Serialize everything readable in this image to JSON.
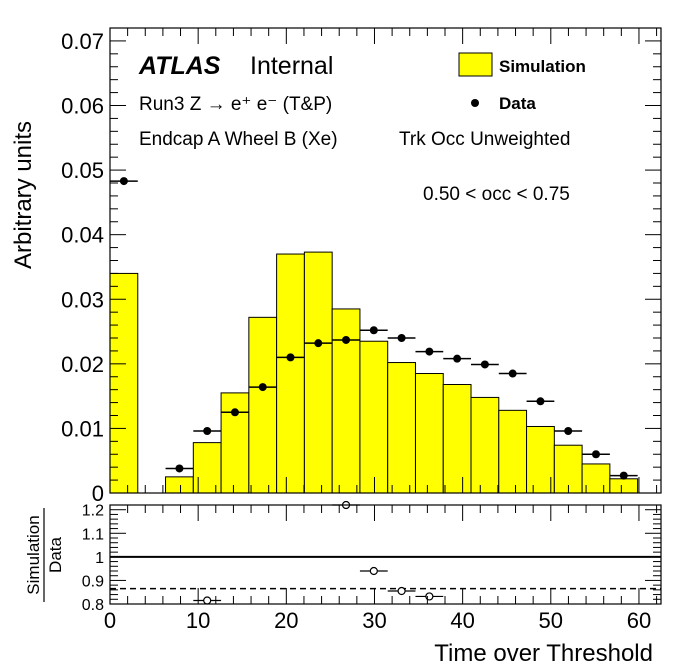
{
  "chart_data": {
    "type": "bar",
    "top_panel": {
      "ylabel": "Arbitrary units",
      "ylim": [
        0,
        0.072
      ],
      "yticks": [
        "0",
        "0.01",
        "0.02",
        "0.03",
        "0.04",
        "0.05",
        "0.06",
        "0.07"
      ],
      "bin_edges": [
        0,
        3.15,
        6.3,
        9.45,
        12.6,
        15.75,
        18.9,
        22.05,
        25.2,
        28.35,
        31.5,
        34.65,
        37.8,
        40.95,
        44.1,
        47.25,
        50.4,
        53.55,
        56.7,
        59.85
      ],
      "series": [
        {
          "name": "Simulation",
          "style": "filled-histogram",
          "color": "#ffff00",
          "values": [
            0.034,
            0.0,
            0.0025,
            0.0078,
            0.0155,
            0.0272,
            0.037,
            0.0373,
            0.0285,
            0.0235,
            0.0202,
            0.0185,
            0.0168,
            0.0148,
            0.0128,
            0.0103,
            0.0074,
            0.0045,
            0.0022
          ]
        },
        {
          "name": "Data",
          "style": "points",
          "color": "#000000",
          "x": [
            1.575,
            7.875,
            11.025,
            14.175,
            17.325,
            20.475,
            23.625,
            26.775,
            29.925,
            33.075,
            36.225,
            39.375,
            42.525,
            45.675,
            48.825,
            51.975,
            55.125,
            58.275
          ],
          "values": [
            0.0483,
            0.0038,
            0.0096,
            0.0125,
            0.0164,
            0.021,
            0.0232,
            0.0237,
            0.0252,
            0.024,
            0.0219,
            0.0208,
            0.0199,
            0.0185,
            0.0142,
            0.0096,
            0.006,
            0.0027
          ]
        }
      ]
    },
    "ratio_panel": {
      "ylabel_numerator": "Simulation",
      "ylabel_denominator": "Data",
      "ylim": [
        0.8,
        1.22
      ],
      "yticks": [
        "0.8",
        "0.9",
        "1",
        "1.1",
        "1.2"
      ],
      "reference_line": 1.0,
      "dashed_line": 0.865,
      "points": {
        "x": [
          11.025,
          26.775,
          29.925,
          33.075,
          36.225
        ],
        "values": [
          0.815,
          1.22,
          0.94,
          0.855,
          0.832
        ]
      }
    },
    "xlabel": "Time over Threshold",
    "xlim": [
      0,
      62.5
    ],
    "xticks": [
      "0",
      "10",
      "20",
      "30",
      "40",
      "50",
      "60"
    ],
    "xtick_values": [
      0,
      10,
      20,
      30,
      40,
      50,
      60
    ]
  },
  "labels": {
    "atlas": "ATLAS",
    "internal": "Internal",
    "process": "Run3 Z → e⁺ e⁻ (T&P)",
    "region": "Endcap A Wheel B (Xe)",
    "weighting": "Trk Occ Unweighted",
    "occupancy": "0.50 < occ < 0.75"
  },
  "legend": {
    "simulation": "Simulation",
    "data": "Data",
    "placement": "top-right"
  }
}
